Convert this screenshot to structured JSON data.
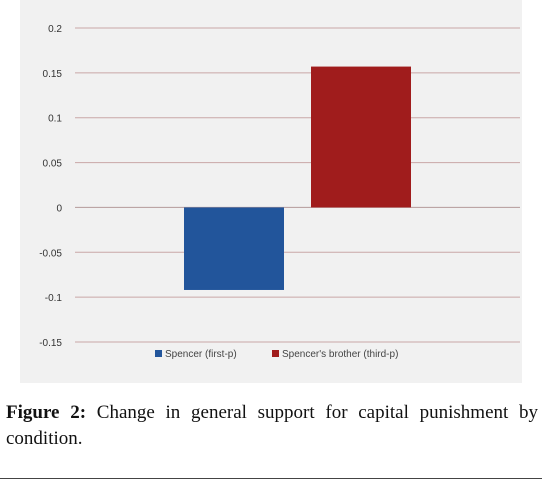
{
  "chart_data": {
    "type": "bar",
    "categories": [
      "Spencer (first-p)",
      "Spencer's brother (third-p)"
    ],
    "values": [
      -0.092,
      0.157
    ],
    "colors": [
      "#22559b",
      "#a01c1c"
    ],
    "series": [
      {
        "name": "Spencer (first-p)",
        "value": -0.092,
        "color": "#22559b"
      },
      {
        "name": "Spencer's brother (third-p)",
        "value": 0.157,
        "color": "#a01c1c"
      }
    ],
    "ylim": [
      -0.15,
      0.2
    ],
    "yticks": [
      0.2,
      0.15,
      0.1,
      0.05,
      0,
      -0.05,
      -0.1,
      -0.15
    ],
    "ytick_labels": [
      "0.2",
      "0.15",
      "0.1",
      "0.05",
      "0",
      "-0.05",
      "-0.1",
      "-0.15"
    ],
    "grid": true,
    "legend": "bottom",
    "title": "",
    "xlabel": "",
    "ylabel": "",
    "gridline_color": "#c9a7a7"
  },
  "caption": {
    "label": "Figure 2:",
    "text": "Change in general support for capital punishment by condition."
  }
}
